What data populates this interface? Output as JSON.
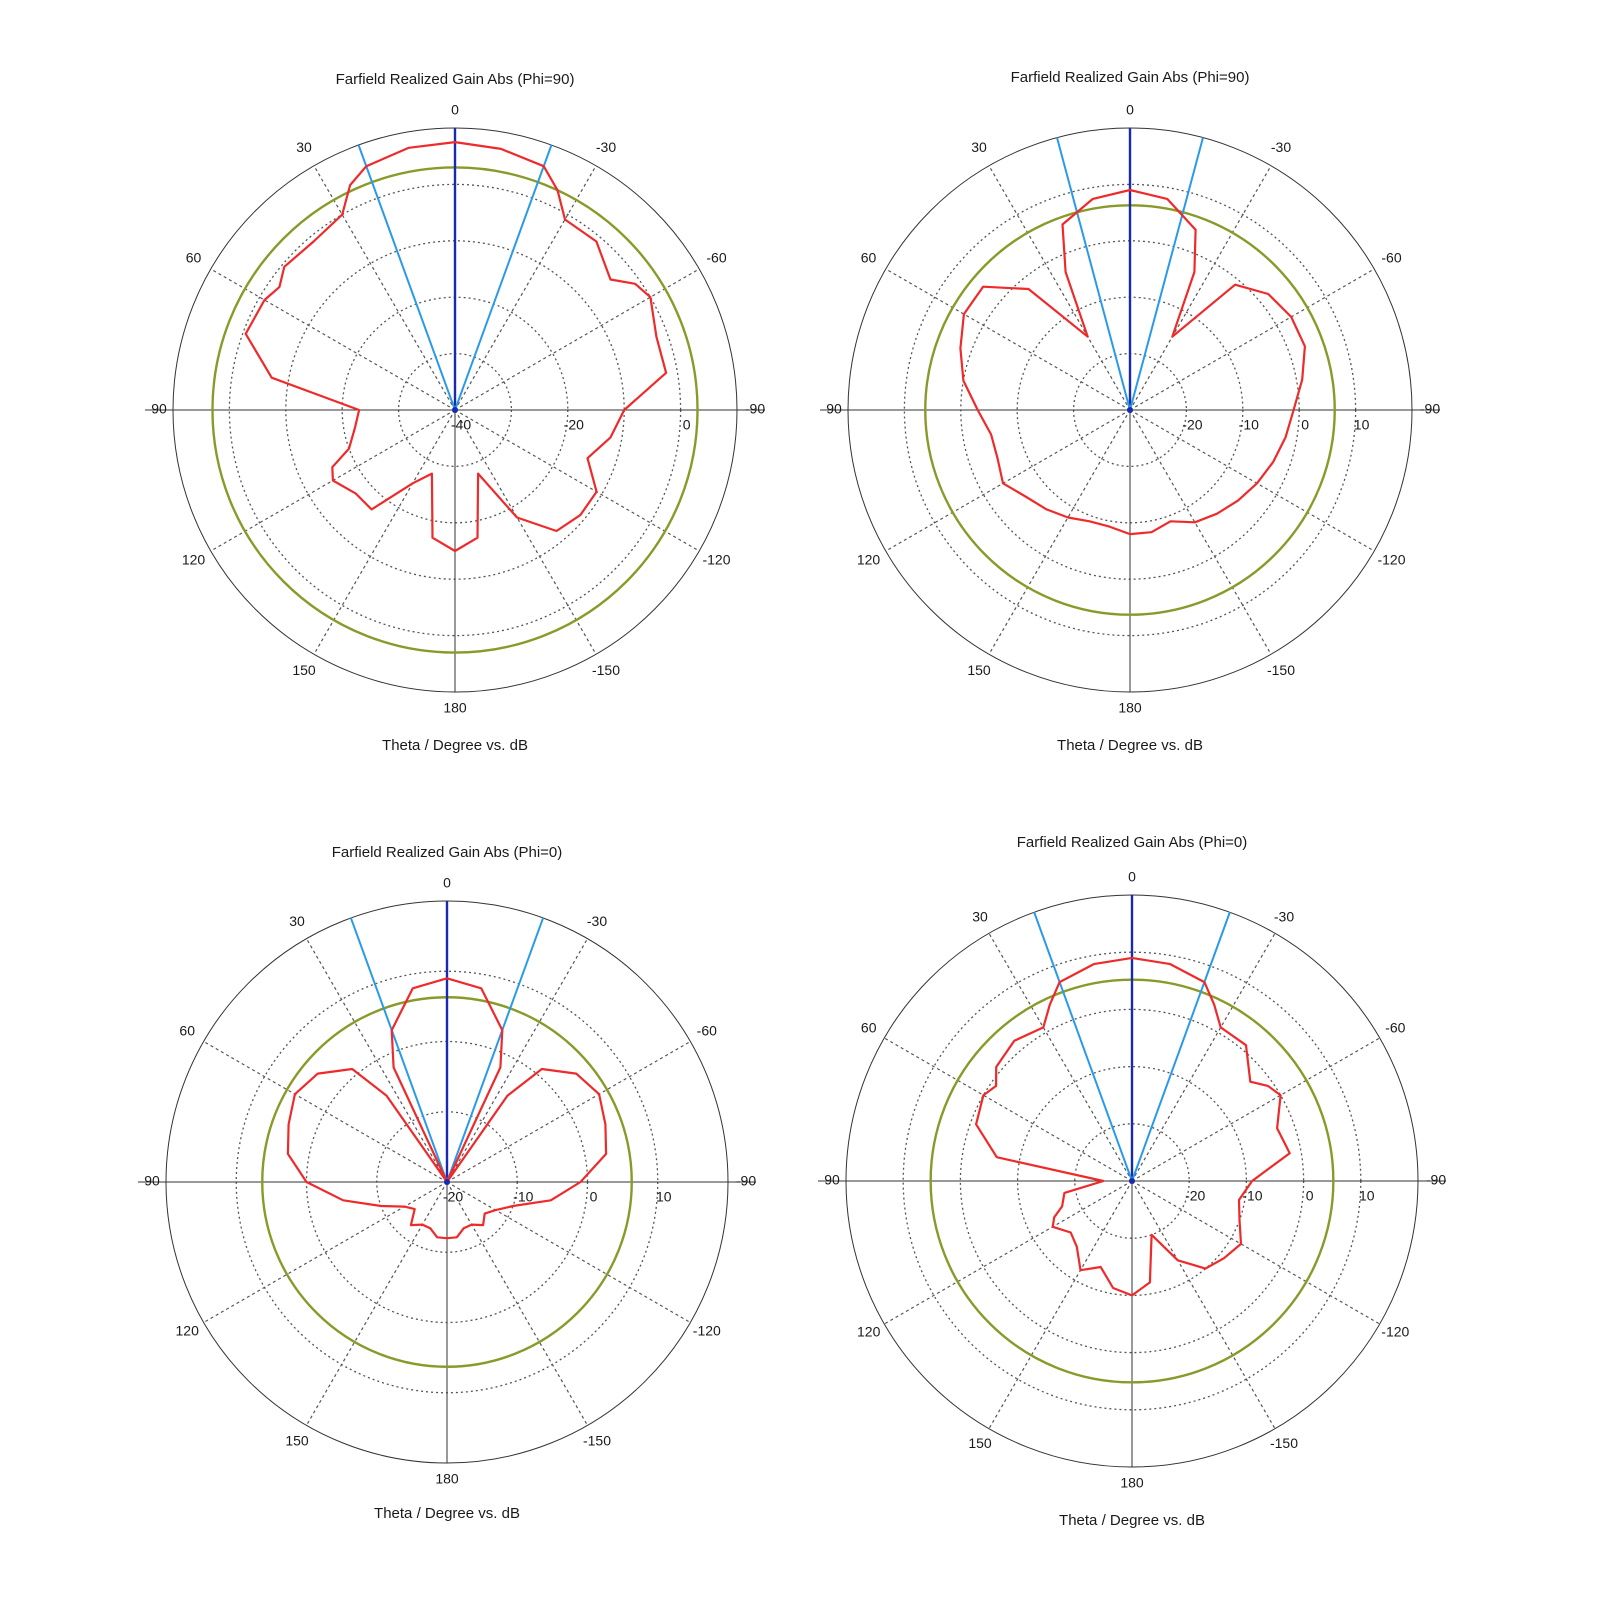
{
  "chart_data": [
    {
      "type": "polar",
      "title": "Farfield Realized Gain Abs (Phi=90)",
      "xlabel": "Theta / Degree vs. dB",
      "angle_ticks": [
        "0",
        "30",
        "60",
        "90",
        "120",
        "150",
        "180",
        "-150",
        "-120",
        "-90",
        "-60",
        "-30"
      ],
      "radial_ticks": [
        {
          "value": -40,
          "label": "-40"
        },
        {
          "value": -20,
          "label": "-20"
        },
        {
          "value": 0,
          "label": "0"
        }
      ],
      "rlim": [
        -40,
        10
      ],
      "grid_circles_db": [
        -30,
        -20,
        -10,
        0
      ],
      "threshold_db": 3,
      "beam_lines_deg": [
        0,
        20,
        -20
      ],
      "colors": {
        "pattern": "#ee2a2a",
        "threshold": "#8a9a2a",
        "main_beam": "#1a2ab0",
        "beam_width": "#2a9ae8",
        "grid": "#555555"
      },
      "series": [
        {
          "theta_deg": [
            0,
            10,
            20,
            25,
            30,
            40,
            50,
            55,
            60,
            70,
            80,
            90,
            100,
            110,
            115,
            120,
            130,
            140,
            150,
            160,
            170,
            180,
            -170,
            -160,
            -150,
            -140,
            -130,
            -120,
            -110,
            -100,
            -90,
            -80,
            -70,
            -60,
            -55,
            -50,
            -40,
            -30,
            -25,
            -20,
            -10
          ],
          "gain_db": [
            7.5,
            7.2,
            6,
            4,
            0,
            -1,
            -0.5,
            -2,
            -1,
            -0.5,
            -7,
            -23,
            -22,
            -20,
            -16,
            -15,
            -17,
            -17,
            -25,
            -28,
            -17,
            -15,
            -17,
            -28,
            -18,
            -12,
            -11,
            -11,
            -15,
            -12,
            -10,
            -2,
            -2,
            0,
            -1,
            -4,
            -1,
            -1,
            3,
            6,
            7
          ]
        }
      ]
    },
    {
      "type": "polar",
      "title": "Farfield Realized Gain Abs (Phi=90)",
      "xlabel": "Theta / Degree vs. dB",
      "angle_ticks": [
        "0",
        "30",
        "60",
        "90",
        "120",
        "150",
        "180",
        "-150",
        "-120",
        "-90",
        "-60",
        "-30"
      ],
      "radial_ticks": [
        {
          "value": -20,
          "label": "-20"
        },
        {
          "value": -10,
          "label": "-10"
        },
        {
          "value": 0,
          "label": "0"
        },
        {
          "value": 10,
          "label": "10"
        }
      ],
      "rlim": [
        -30,
        20
      ],
      "grid_circles_db": [
        -20,
        -10,
        0,
        10
      ],
      "threshold_db": 6.3,
      "beam_lines_deg": [
        0,
        15,
        -15
      ],
      "colors": {
        "pattern": "#ee2a2a",
        "threshold": "#8a9a2a",
        "main_beam": "#1a2ab0",
        "beam_width": "#2a9ae8",
        "grid": "#555555"
      },
      "series": [
        {
          "theta_deg": [
            0,
            10,
            20,
            25,
            30,
            40,
            50,
            60,
            70,
            80,
            90,
            100,
            110,
            120,
            130,
            140,
            150,
            160,
            170,
            180,
            -170,
            -160,
            -150,
            -140,
            -130,
            -120,
            -110,
            -100,
            -90,
            -80,
            -70,
            -60,
            -50,
            -40,
            -30,
            -25,
            -20,
            -10
          ],
          "gain_db": [
            9,
            8,
            5,
            -3,
            -15,
            -2,
            4,
            4,
            2,
            0,
            -3,
            -5,
            -5,
            -4,
            -6,
            -7,
            -8,
            -9,
            -9,
            -8,
            -8,
            -9,
            -7,
            -6,
            -5,
            -4,
            -3,
            -2,
            -1,
            1,
            3,
            3,
            2,
            -1,
            -15,
            -3,
            4,
            8
          ]
        }
      ]
    },
    {
      "type": "polar",
      "title": "Farfield Realized Gain Abs (Phi=0)",
      "xlabel": "Theta / Degree vs. dB",
      "angle_ticks": [
        "0",
        "30",
        "60",
        "90",
        "120",
        "150",
        "180",
        "-150",
        "-120",
        "-90",
        "-60",
        "-30"
      ],
      "radial_ticks": [
        {
          "value": -20,
          "label": "-20"
        },
        {
          "value": -10,
          "label": "-10"
        },
        {
          "value": 0,
          "label": "0"
        },
        {
          "value": 10,
          "label": "10"
        }
      ],
      "rlim": [
        -20,
        20
      ],
      "grid_circles_db": [
        -10,
        0,
        10
      ],
      "threshold_db": 6.3,
      "beam_lines_deg": [
        0,
        20,
        -20
      ],
      "colors": {
        "pattern": "#ee2a2a",
        "threshold": "#8a9a2a",
        "main_beam": "#1a2ab0",
        "beam_width": "#2a9ae8",
        "grid": "#555555"
      },
      "series": [
        {
          "theta_deg": [
            0,
            10,
            20,
            25,
            30,
            35,
            40,
            50,
            60,
            70,
            80,
            90,
            100,
            110,
            120,
            130,
            140,
            150,
            160,
            170,
            180,
            -170,
            -160,
            -150,
            -140,
            -130,
            -120,
            -110,
            -100,
            -90,
            -80,
            -70,
            -60,
            -50,
            -40,
            -35,
            -30,
            -25,
            -20,
            -10
          ],
          "gain_db": [
            9,
            8,
            3,
            -2,
            -20,
            -5,
            1,
            4,
            5,
            4,
            3,
            0,
            -5,
            -10,
            -13,
            -14,
            -12,
            -13,
            -13,
            -12,
            -12,
            -12,
            -13,
            -13,
            -12,
            -13,
            -12,
            -10,
            -5,
            -1,
            3,
            4,
            5,
            4,
            1,
            -5,
            -20,
            -2,
            3,
            8
          ]
        }
      ]
    },
    {
      "type": "polar",
      "title": "Farfield Realized Gain Abs (Phi=0)",
      "xlabel": "Theta / Degree vs. dB",
      "angle_ticks": [
        "0",
        "30",
        "60",
        "90",
        "120",
        "150",
        "180",
        "-150",
        "-120",
        "-90",
        "-60",
        "-30"
      ],
      "radial_ticks": [
        {
          "value": -20,
          "label": "-20"
        },
        {
          "value": -10,
          "label": "-10"
        },
        {
          "value": 0,
          "label": "0"
        },
        {
          "value": 10,
          "label": "10"
        }
      ],
      "rlim": [
        -30,
        20
      ],
      "grid_circles_db": [
        -20,
        -10,
        0,
        10
      ],
      "threshold_db": 5.2,
      "beam_lines_deg": [
        0,
        20,
        -20
      ],
      "colors": {
        "pattern": "#ee2a2a",
        "threshold": "#8a9a2a",
        "main_beam": "#1a2ab0",
        "beam_width": "#2a9ae8",
        "grid": "#555555"
      },
      "series": [
        {
          "theta_deg": [
            0,
            10,
            20,
            25,
            30,
            40,
            50,
            55,
            60,
            70,
            80,
            90,
            100,
            110,
            115,
            120,
            130,
            140,
            150,
            160,
            170,
            180,
            -170,
            -160,
            -150,
            -140,
            -130,
            -120,
            -110,
            -100,
            -90,
            -80,
            -70,
            -60,
            -55,
            -50,
            -40,
            -30,
            -25,
            -20,
            -10
          ],
          "gain_db": [
            9,
            8.5,
            7,
            4,
            1,
            2,
            1,
            -1,
            0,
            -1,
            -6,
            -25,
            -18,
            -17,
            -15,
            -14,
            -16,
            -15,
            -12,
            -14,
            -11,
            -10,
            -12,
            -20,
            -14,
            -10,
            -9,
            -8,
            -10,
            -11,
            -9,
            -2,
            -3,
            0,
            -1,
            -3,
            1,
            1,
            4,
            7,
            8.5
          ]
        }
      ]
    }
  ]
}
